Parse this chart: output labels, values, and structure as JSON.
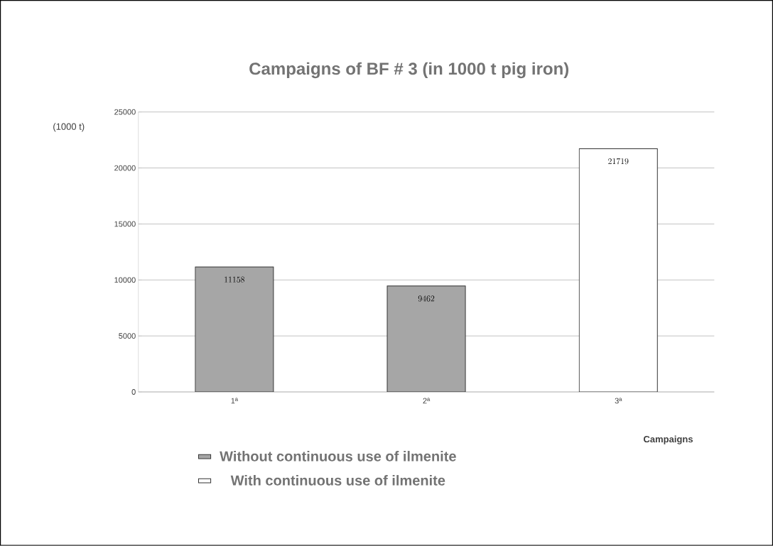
{
  "chart_data": {
    "type": "bar",
    "title": "Campaigns of BF # 3 (in 1000 t pig iron)",
    "xlabel": "Campaigns",
    "ylabel": "(1000 t)",
    "categories": [
      "1ª",
      "2ª",
      "3ª"
    ],
    "series": [
      {
        "name": "Without continuous use of ilmenite",
        "color": "#a6a6a6",
        "values": [
          11158,
          9462,
          null
        ]
      },
      {
        "name": "With continuous use of ilmenite",
        "color": "#ffffff",
        "values": [
          null,
          null,
          21719
        ]
      }
    ],
    "ylim": [
      0,
      25000
    ],
    "yticks": [
      0,
      5000,
      10000,
      15000,
      20000,
      25000
    ],
    "grid": "y",
    "legend": "bottom",
    "data_labels": true
  }
}
